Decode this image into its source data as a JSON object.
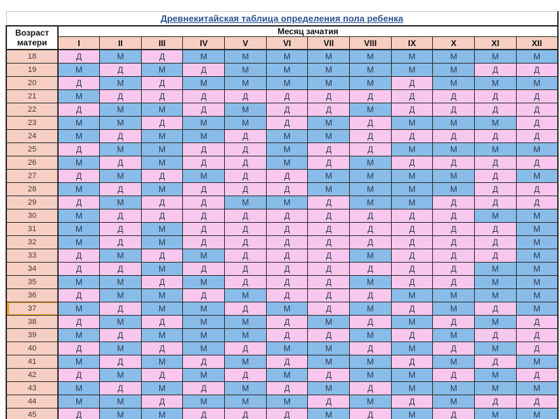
{
  "chart_data": {
    "type": "table",
    "title": "Древнекитайская таблица определения пола ребенка",
    "row_header": "Возраст матери",
    "col_header": "Месяц зачатия",
    "columns": [
      "I",
      "II",
      "III",
      "IV",
      "V",
      "VI",
      "VII",
      "VIII",
      "IX",
      "X",
      "XI",
      "XII"
    ],
    "row_labels": [
      "18",
      "19",
      "20",
      "21",
      "22",
      "23",
      "24",
      "25",
      "26",
      "27",
      "28",
      "29",
      "30",
      "31",
      "32",
      "33",
      "34",
      "35",
      "36",
      "37",
      "38",
      "39",
      "40",
      "41",
      "42",
      "43",
      "44",
      "45"
    ],
    "values": [
      [
        "Д",
        "М",
        "Д",
        "М",
        "М",
        "М",
        "М",
        "М",
        "М",
        "М",
        "М",
        "М"
      ],
      [
        "М",
        "Д",
        "М",
        "Д",
        "М",
        "М",
        "М",
        "М",
        "М",
        "М",
        "Д",
        "Д"
      ],
      [
        "Д",
        "М",
        "Д",
        "М",
        "М",
        "М",
        "М",
        "М",
        "Д",
        "М",
        "М",
        "М"
      ],
      [
        "М",
        "Д",
        "Д",
        "Д",
        "Д",
        "Д",
        "Д",
        "Д",
        "Д",
        "Д",
        "Д",
        "Д"
      ],
      [
        "Д",
        "М",
        "М",
        "Д",
        "М",
        "Д",
        "Д",
        "М",
        "Д",
        "Д",
        "Д",
        "Д"
      ],
      [
        "М",
        "М",
        "Д",
        "М",
        "М",
        "Д",
        "М",
        "Д",
        "М",
        "М",
        "М",
        "Д"
      ],
      [
        "М",
        "Д",
        "М",
        "М",
        "Д",
        "М",
        "М",
        "Д",
        "Д",
        "Д",
        "Д",
        "Д"
      ],
      [
        "Д",
        "М",
        "М",
        "Д",
        "Д",
        "М",
        "Д",
        "Д",
        "М",
        "М",
        "М",
        "М"
      ],
      [
        "М",
        "Д",
        "М",
        "Д",
        "Д",
        "М",
        "Д",
        "М",
        "Д",
        "Д",
        "Д",
        "Д"
      ],
      [
        "Д",
        "М",
        "Д",
        "М",
        "Д",
        "Д",
        "М",
        "М",
        "М",
        "М",
        "Д",
        "М"
      ],
      [
        "М",
        "Д",
        "М",
        "Д",
        "Д",
        "Д",
        "М",
        "М",
        "М",
        "М",
        "Д",
        "Д"
      ],
      [
        "Д",
        "М",
        "Д",
        "Д",
        "М",
        "М",
        "Д",
        "М",
        "М",
        "Д",
        "Д",
        "Д"
      ],
      [
        "М",
        "Д",
        "Д",
        "Д",
        "Д",
        "Д",
        "Д",
        "Д",
        "Д",
        "Д",
        "М",
        "М"
      ],
      [
        "М",
        "Д",
        "М",
        "Д",
        "Д",
        "Д",
        "Д",
        "Д",
        "Д",
        "Д",
        "Д",
        "М"
      ],
      [
        "М",
        "Д",
        "М",
        "Д",
        "Д",
        "Д",
        "Д",
        "Д",
        "Д",
        "Д",
        "Д",
        "М"
      ],
      [
        "Д",
        "М",
        "Д",
        "М",
        "Д",
        "Д",
        "Д",
        "М",
        "Д",
        "Д",
        "Д",
        "М"
      ],
      [
        "Д",
        "Д",
        "М",
        "Д",
        "Д",
        "Д",
        "Д",
        "Д",
        "Д",
        "Д",
        "М",
        "М"
      ],
      [
        "М",
        "М",
        "Д",
        "М",
        "Д",
        "Д",
        "Д",
        "М",
        "Д",
        "Д",
        "М",
        "М"
      ],
      [
        "Д",
        "М",
        "М",
        "Д",
        "М",
        "Д",
        "Д",
        "Д",
        "М",
        "М",
        "М",
        "М"
      ],
      [
        "М",
        "Д",
        "М",
        "М",
        "Д",
        "М",
        "Д",
        "М",
        "Д",
        "М",
        "Д",
        "М"
      ],
      [
        "Д",
        "М",
        "Д",
        "М",
        "М",
        "Д",
        "М",
        "Д",
        "М",
        "Д",
        "М",
        "Д"
      ],
      [
        "М",
        "Д",
        "М",
        "М",
        "М",
        "Д",
        "Д",
        "М",
        "Д",
        "М",
        "Д",
        "Д"
      ],
      [
        "Д",
        "М",
        "Д",
        "М",
        "Д",
        "М",
        "М",
        "Д",
        "М",
        "Д",
        "М",
        "Д"
      ],
      [
        "М",
        "Д",
        "М",
        "Д",
        "М",
        "Д",
        "М",
        "М",
        "Д",
        "М",
        "Д",
        "М"
      ],
      [
        "Д",
        "М",
        "Д",
        "М",
        "Д",
        "М",
        "Д",
        "М",
        "М",
        "Д",
        "М",
        "Д"
      ],
      [
        "М",
        "Д",
        "М",
        "Д",
        "М",
        "Д",
        "М",
        "Д",
        "М",
        "М",
        "М",
        "М"
      ],
      [
        "М",
        "М",
        "Д",
        "М",
        "М",
        "М",
        "Д",
        "М",
        "Д",
        "М",
        "Д",
        "Д"
      ],
      [
        "Д",
        "М",
        "М",
        "Д",
        "Д",
        "Д",
        "М",
        "Д",
        "М",
        "Д",
        "М",
        "М"
      ]
    ],
    "cell_colors": {
      "Д": "#f7c7ee",
      "М": "#89bce9"
    }
  },
  "highlighted_row_label": "37",
  "colors": {
    "background": "#ffffff",
    "girl_cell_bg": "#f7c7ee",
    "boy_cell_bg": "#89bce9",
    "age_cell_bg": "#f7cfc2",
    "title_text": "#2e5496",
    "cell_text": "#2e3b52",
    "grid_line": "#2b2b2b",
    "highlight": "#f2a41d"
  }
}
